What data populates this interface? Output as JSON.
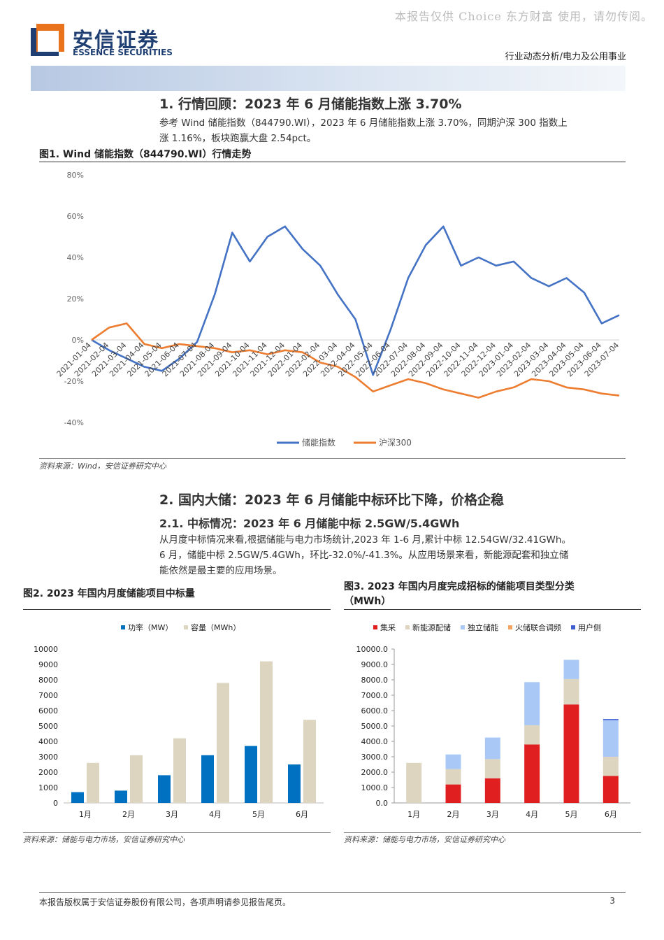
{
  "header": {
    "watermark": "本报告仅供 Choice 东方财富 使用，请勿传阅。",
    "brand_cn": "安信证券",
    "brand_en": "ESSENCE SECURITIES",
    "category": "行业动态分析/电力及公用事业",
    "colors": {
      "brand": "#1f3f73",
      "accent": "#e8731c"
    }
  },
  "section1": {
    "title": "1. 行情回顾：2023 年 6 月储能指数上涨 3.70%",
    "body_line1": "参考 Wind 储能指数（844790.WI），2023 年 6 月储能指数上涨 3.70%，同期沪深 300 指数上",
    "body_line2": "涨 1.16%，板块跑赢大盘 2.54pct。"
  },
  "figure1": {
    "title": "图1. Wind 储能指数（844790.WI）行情走势",
    "source": "资料来源：Wind，安信证券研究中心"
  },
  "section2": {
    "title": "2. 国内大储：2023 年 6 月储能中标环比下降，价格企稳",
    "subtitle": "2.1. 中标情况：2023 年 6 月储能中标 2.5GW/5.4GWh",
    "body_line1": "从月度中标情况来看,根据储能与电力市场统计,2023 年 1-6 月,累计中标 12.54GW/32.41GWh。",
    "body_line2": "6 月，储能中标 2.5GW/5.4GWh，环比-32.0%/-41.3%。从应用场景来看，新能源配套和独立储",
    "body_line3": "能依然是最主要的应用场景。"
  },
  "figure2": {
    "title": "图2. 2023 年国内月度储能项目中标量",
    "source": "资料来源：储能与电力市场，安信证券研究中心"
  },
  "figure3": {
    "title_line1": "图3. 2023 年国内月度完成招标的储能项目类型分类",
    "title_line2": "（MWh）",
    "source": "资料来源：储能与电力市场，安信证券研究中心"
  },
  "footer": {
    "disclaimer": "本报告版权属于安信证券股份有限公司，各项声明请参见报告尾页。",
    "page": "3"
  },
  "chart_data": [
    {
      "type": "line",
      "x": [
        "2021-01-04",
        "2021-02-04",
        "2021-03-04",
        "2021-04-04",
        "2021-05-04",
        "2021-06-04",
        "2021-07-04",
        "2021-08-04",
        "2021-09-04",
        "2021-10-04",
        "2021-11-04",
        "2021-12-04",
        "2022-01-04",
        "2022-02-04",
        "2022-03-04",
        "2022-04-04",
        "2022-05-04",
        "2022-06-04",
        "2022-07-04",
        "2022-08-04",
        "2022-09-04",
        "2022-10-04",
        "2022-11-04",
        "2022-12-04",
        "2023-01-04",
        "2023-02-04",
        "2023-03-04",
        "2023-04-04",
        "2023-05-04",
        "2023-06-04",
        "2023-07-04"
      ],
      "series": [
        {
          "name": "储能指数",
          "color": "#4472c4",
          "values": [
            0,
            -5,
            -9,
            -13,
            -15,
            -9,
            -1,
            22,
            52,
            38,
            50,
            55,
            44,
            36,
            22,
            10,
            -17,
            5,
            30,
            46,
            55,
            36,
            40,
            36,
            38,
            30,
            26,
            30,
            23,
            8,
            12
          ]
        },
        {
          "name": "沪深300",
          "color": "#ed7d31",
          "values": [
            0,
            6,
            8,
            -2,
            -4,
            -2,
            -3,
            -4,
            -6,
            -5,
            -7,
            -5,
            -6,
            -11,
            -13,
            -18,
            -25,
            -22,
            -19,
            -21,
            -24,
            -26,
            -28,
            -25,
            -23,
            -19,
            -20,
            -23,
            -24,
            -26,
            -27
          ]
        }
      ],
      "ylim": [
        -40,
        80
      ],
      "yticks": [
        -40,
        -20,
        0,
        20,
        40,
        60,
        80
      ],
      "ytick_format": "percent",
      "legend": "bottom",
      "grid": false
    },
    {
      "type": "bar",
      "categories": [
        "1月",
        "2月",
        "3月",
        "4月",
        "5月",
        "6月"
      ],
      "series": [
        {
          "name": "功率（MW）",
          "color": "#0070c0",
          "values": [
            700,
            800,
            1800,
            3100,
            3700,
            2500
          ]
        },
        {
          "name": "容量（MWh）",
          "color": "#ddd5c0",
          "values": [
            2600,
            3100,
            4200,
            7800,
            9200,
            5400
          ]
        }
      ],
      "ylim": [
        0,
        10000
      ],
      "yticks": [
        0,
        1000,
        2000,
        3000,
        4000,
        5000,
        6000,
        7000,
        8000,
        9000,
        10000
      ],
      "legend": "top",
      "grid": false
    },
    {
      "type": "bar",
      "stacked": true,
      "categories": [
        "1月",
        "2月",
        "3月",
        "4月",
        "5月",
        "6月"
      ],
      "series": [
        {
          "name": "集采",
          "color": "#e02020",
          "values": [
            0,
            1200,
            1600,
            3800,
            6400,
            1750
          ]
        },
        {
          "name": "新能源配储",
          "color": "#ddd5c0",
          "values": [
            2600,
            1000,
            1250,
            1250,
            1650,
            1250
          ]
        },
        {
          "name": "独立储能",
          "color": "#a9c8f5",
          "values": [
            0,
            950,
            1400,
            2800,
            1250,
            2380
          ]
        },
        {
          "name": "火储联合调频",
          "color": "#f4a460",
          "values": [
            0,
            0,
            0,
            0,
            0,
            0
          ]
        },
        {
          "name": "用户侧",
          "color": "#4060d0",
          "values": [
            0,
            0,
            0,
            0,
            0,
            70
          ]
        }
      ],
      "ylim": [
        0,
        10000
      ],
      "yticks": [
        0,
        1000,
        2000,
        3000,
        4000,
        5000,
        6000,
        7000,
        8000,
        9000,
        10000
      ],
      "ytick_format": "fixed1",
      "legend": "top",
      "grid": false
    }
  ]
}
